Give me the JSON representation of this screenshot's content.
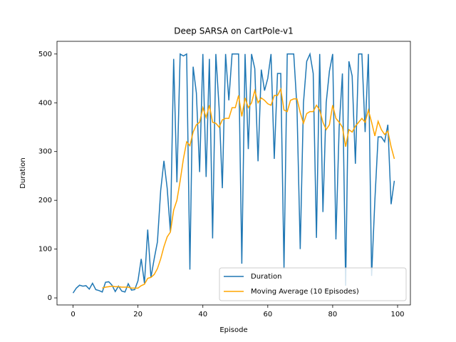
{
  "chart_data": {
    "type": "line",
    "title": "Deep SARSA on CartPole-v1",
    "xlabel": "Episode",
    "ylabel": "Duration",
    "x": [
      0,
      1,
      2,
      3,
      4,
      5,
      6,
      7,
      8,
      9,
      10,
      11,
      12,
      13,
      14,
      15,
      16,
      17,
      18,
      19,
      20,
      21,
      22,
      23,
      24,
      25,
      26,
      27,
      28,
      29,
      30,
      31,
      32,
      33,
      34,
      35,
      36,
      37,
      38,
      39,
      40,
      41,
      42,
      43,
      44,
      45,
      46,
      47,
      48,
      49,
      50,
      51,
      52,
      53,
      54,
      55,
      56,
      57,
      58,
      59,
      60,
      61,
      62,
      63,
      64,
      65,
      66,
      67,
      68,
      69,
      70,
      71,
      72,
      73,
      74,
      75,
      76,
      77,
      78,
      79,
      80,
      81,
      82,
      83,
      84,
      85,
      86,
      87,
      88,
      89,
      90,
      91,
      92,
      93,
      94,
      95,
      96,
      97,
      98,
      99
    ],
    "series": [
      {
        "name": "Duration",
        "color": "#1f77b4",
        "values": [
          10,
          20,
          26,
          24,
          25,
          18,
          30,
          17,
          15,
          12,
          32,
          33,
          26,
          13,
          24,
          14,
          12,
          29,
          16,
          17,
          35,
          80,
          30,
          140,
          42,
          80,
          115,
          220,
          281,
          225,
          135,
          490,
          237,
          500,
          496,
          500,
          58,
          474,
          420,
          258,
          500,
          248,
          490,
          122,
          500,
          390,
          225,
          500,
          405,
          500,
          500,
          500,
          70,
          500,
          305,
          500,
          470,
          280,
          468,
          425,
          450,
          500,
          285,
          460,
          460,
          60,
          500,
          500,
          500,
          390,
          100,
          400,
          485,
          500,
          460,
          123,
          500,
          176,
          400,
          465,
          500,
          120,
          350,
          460,
          25,
          485,
          455,
          275,
          500,
          500,
          340,
          500,
          45,
          200,
          330,
          330,
          320,
          355,
          192,
          240
        ]
      },
      {
        "name": "Moving Average (10 Episodes)",
        "color": "#ffa500",
        "values": [
          null,
          null,
          null,
          null,
          null,
          null,
          null,
          null,
          null,
          20,
          22,
          23,
          24,
          23,
          23,
          22,
          22,
          22,
          20,
          20,
          20,
          25,
          28,
          40,
          42,
          48,
          60,
          80,
          105,
          125,
          135,
          180,
          200,
          240,
          285,
          320,
          312,
          340,
          355,
          360,
          390,
          370,
          395,
          360,
          358,
          350,
          365,
          368,
          368,
          390,
          390,
          415,
          372,
          410,
          390,
          400,
          425,
          400,
          410,
          405,
          398,
          395,
          415,
          415,
          428,
          385,
          382,
          405,
          408,
          408,
          380,
          358,
          378,
          382,
          382,
          395,
          385,
          360,
          345,
          355,
          395,
          368,
          360,
          350,
          310,
          345,
          340,
          352,
          360,
          368,
          360,
          385,
          360,
          332,
          362,
          345,
          335,
          342,
          310,
          285
        ]
      }
    ],
    "xlim": [
      -4.95,
      103.95
    ],
    "ylim": [
      -14.5,
      526
    ],
    "xticks": [
      0,
      20,
      40,
      60,
      80,
      100
    ],
    "yticks": [
      0,
      100,
      200,
      300,
      400,
      500
    ],
    "legend": "lower right"
  }
}
